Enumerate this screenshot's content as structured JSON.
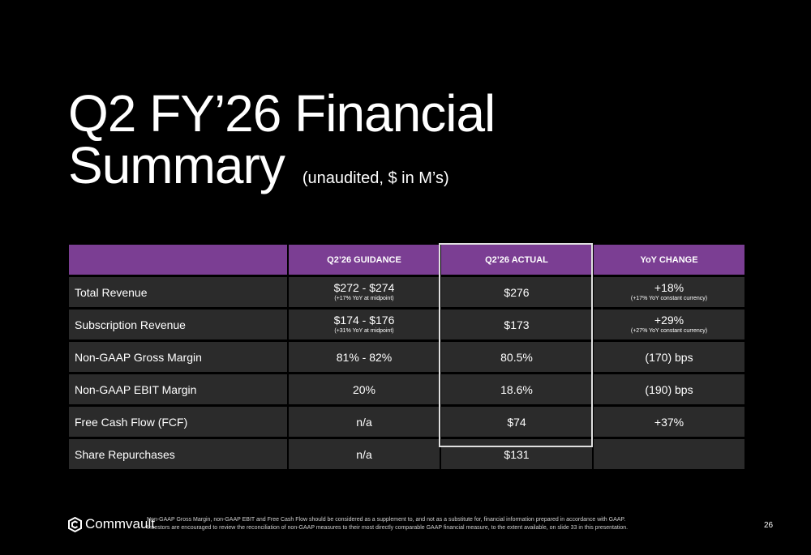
{
  "slide": {
    "title_line1": "Q2 FY’26 Financial",
    "title_line2": "Summary",
    "subtitle": "(unaudited, $ in M’s)"
  },
  "table": {
    "headers": [
      "",
      "Q2’26 GUIDANCE",
      "Q2’26 ACTUAL",
      "YoY CHANGE"
    ],
    "rows": [
      {
        "metric": "Total Revenue",
        "guidance": "$272 - $274",
        "guidance_note": "(+17% YoY at midpoint)",
        "actual": "$276",
        "yoy": "+18%",
        "yoy_note": "(+17% YoY constant currency)"
      },
      {
        "metric": "Subscription Revenue",
        "guidance": "$174 - $176",
        "guidance_note": "(+31% YoY at midpoint)",
        "actual": "$173",
        "yoy": "+29%",
        "yoy_note": "(+27% YoY constant currency)"
      },
      {
        "metric": "Non-GAAP Gross Margin",
        "guidance": "81% - 82%",
        "guidance_note": "",
        "actual": "80.5%",
        "yoy": "(170) bps",
        "yoy_note": ""
      },
      {
        "metric": "Non-GAAP EBIT Margin",
        "guidance": "20%",
        "guidance_note": "",
        "actual": "18.6%",
        "yoy": "(190) bps",
        "yoy_note": ""
      },
      {
        "metric": "Free Cash Flow (FCF)",
        "guidance": "n/a",
        "guidance_note": "",
        "actual": "$74",
        "yoy": "+37%",
        "yoy_note": ""
      },
      {
        "metric": "Share Repurchases",
        "guidance": "n/a",
        "guidance_note": "",
        "actual": "$131",
        "yoy": "",
        "yoy_note": ""
      }
    ]
  },
  "footer": {
    "logo_text": "Commvault",
    "disclaimer_line1": "Non-GAAP Gross Margin, non-GAAP EBIT and Free Cash Flow should be considered as a supplement to, and not as a substitute for, financial information prepared in accordance with GAAP.",
    "disclaimer_line2": "Investors are encouraged to review the reconciliation of non-GAAP measures to their most directly comparable GAAP financial measure, to the extent available, on slide 33 in this presentation.",
    "page_number": "26"
  },
  "colors": {
    "background": "#000000",
    "header_purple": "#7b3e93",
    "row_gray": "#2b2b2b",
    "highlight_border": "#e0e0e0"
  }
}
